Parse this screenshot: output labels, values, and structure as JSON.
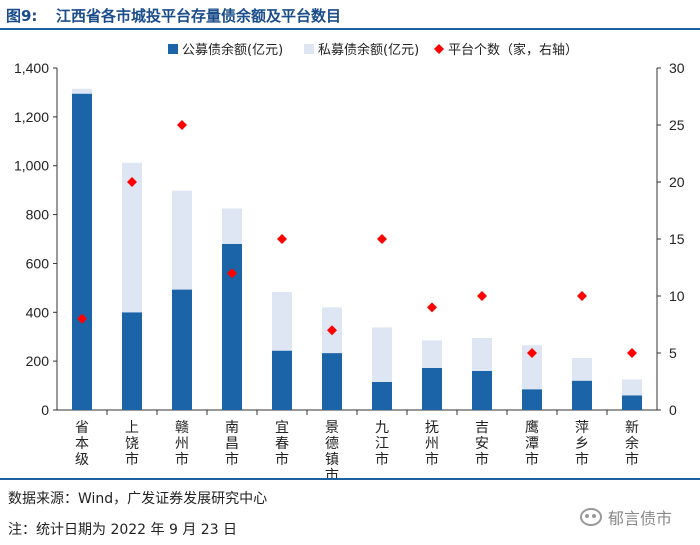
{
  "header": {
    "fig_num": "图9:",
    "title": "江西省各市城投平台存量债余额及平台数目"
  },
  "footer": {
    "source": "数据来源：Wind，广发证券发展研究中心",
    "note": "注：统计日期为 2022 年 9 月 23 日",
    "watermark": "郁言债市"
  },
  "colors": {
    "public": "#1c64a8",
    "private": "#dde6f2",
    "count": "#ff0000",
    "accent": "#1f5fa0"
  },
  "chart_data": {
    "type": "bar",
    "stacked": true,
    "categories": [
      "省本级",
      "上饶市",
      "赣州市",
      "南昌市",
      "宜春市",
      "景德镇市",
      "九江市",
      "抚州市",
      "吉安市",
      "鹰潭市",
      "萍乡市",
      "新余市"
    ],
    "series": [
      {
        "name": "公募债余额(亿元)",
        "axis": "left",
        "kind": "bar",
        "values": [
          1295,
          400,
          493,
          680,
          243,
          233,
          115,
          172,
          160,
          85,
          120,
          60
        ]
      },
      {
        "name": "私募债余额(亿元)",
        "axis": "left",
        "kind": "bar",
        "values": [
          20,
          612,
          405,
          145,
          240,
          187,
          223,
          113,
          135,
          180,
          93,
          65
        ]
      },
      {
        "name": "平台个数（家，右轴）",
        "axis": "right",
        "kind": "scatter",
        "values": [
          8,
          20,
          25,
          12,
          15,
          7,
          15,
          9,
          10,
          5,
          10,
          5
        ]
      }
    ],
    "ylim": [
      0,
      1400
    ],
    "y_ticks": [
      "0",
      "200",
      "400",
      "600",
      "800",
      "1,000",
      "1,200",
      "1,400"
    ],
    "y2lim": [
      0,
      30
    ],
    "y2_ticks": [
      "0",
      "5",
      "10",
      "15",
      "20",
      "25",
      "30"
    ],
    "legend_position": "top",
    "grid": false
  }
}
